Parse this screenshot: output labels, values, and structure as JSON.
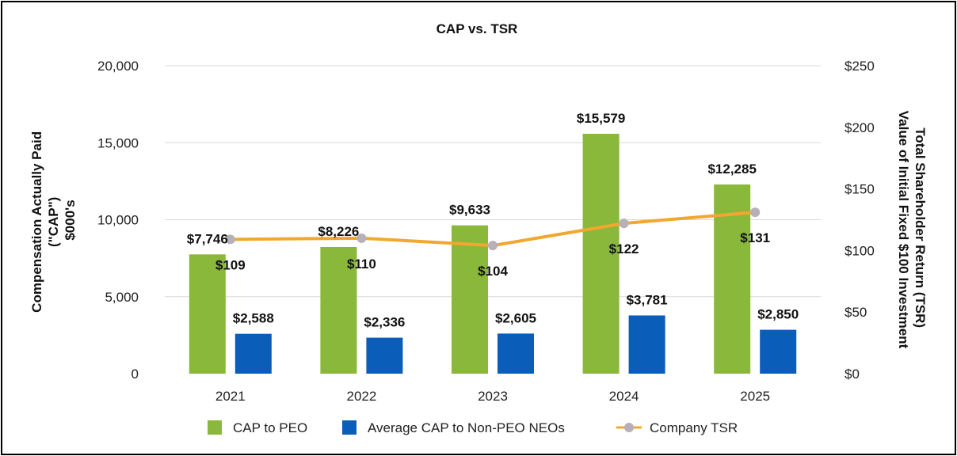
{
  "chart_data": {
    "type": "bar",
    "title": "CAP vs. TSR",
    "categories": [
      "2021",
      "2022",
      "2023",
      "2024",
      "2025"
    ],
    "ylabel": [
      "Compensation Actually Paid",
      "(\"CAP\")",
      "$000's"
    ],
    "y2label": [
      "Total Shareholder Return (TSR)",
      "Value of Initial Fixed $100 Investment"
    ],
    "ylim": [
      0,
      20000
    ],
    "y2lim": [
      0,
      250
    ],
    "yticks": [
      "0",
      "5,000",
      "10,000",
      "15,000",
      "20,000"
    ],
    "y2ticks": [
      "$0",
      "$50",
      "$100",
      "$150",
      "$200",
      "$250"
    ],
    "grid": true,
    "legend_position": "bottom",
    "series": [
      {
        "name": "CAP to PEO",
        "kind": "bar",
        "color": "#8ab83a",
        "values": [
          7746,
          8226,
          9633,
          15579,
          12285
        ],
        "labels": [
          "$7,746",
          "$8,226",
          "$9,633",
          "$15,579",
          "$12,285"
        ]
      },
      {
        "name": "Average CAP to Non-PEO NEOs",
        "kind": "bar",
        "color": "#0a5db8",
        "values": [
          2588,
          2336,
          2605,
          3781,
          2850
        ],
        "labels": [
          "$2,588",
          "$2,336",
          "$2,605",
          "$3,781",
          "$2,850"
        ]
      },
      {
        "name": "Company TSR",
        "kind": "line",
        "axis": "right",
        "color": "#f0a830",
        "marker_color": "#b8b0b8",
        "values": [
          109,
          110,
          104,
          122,
          131
        ],
        "labels": [
          "$109",
          "$110",
          "$104",
          "$122",
          "$131"
        ]
      }
    ]
  }
}
